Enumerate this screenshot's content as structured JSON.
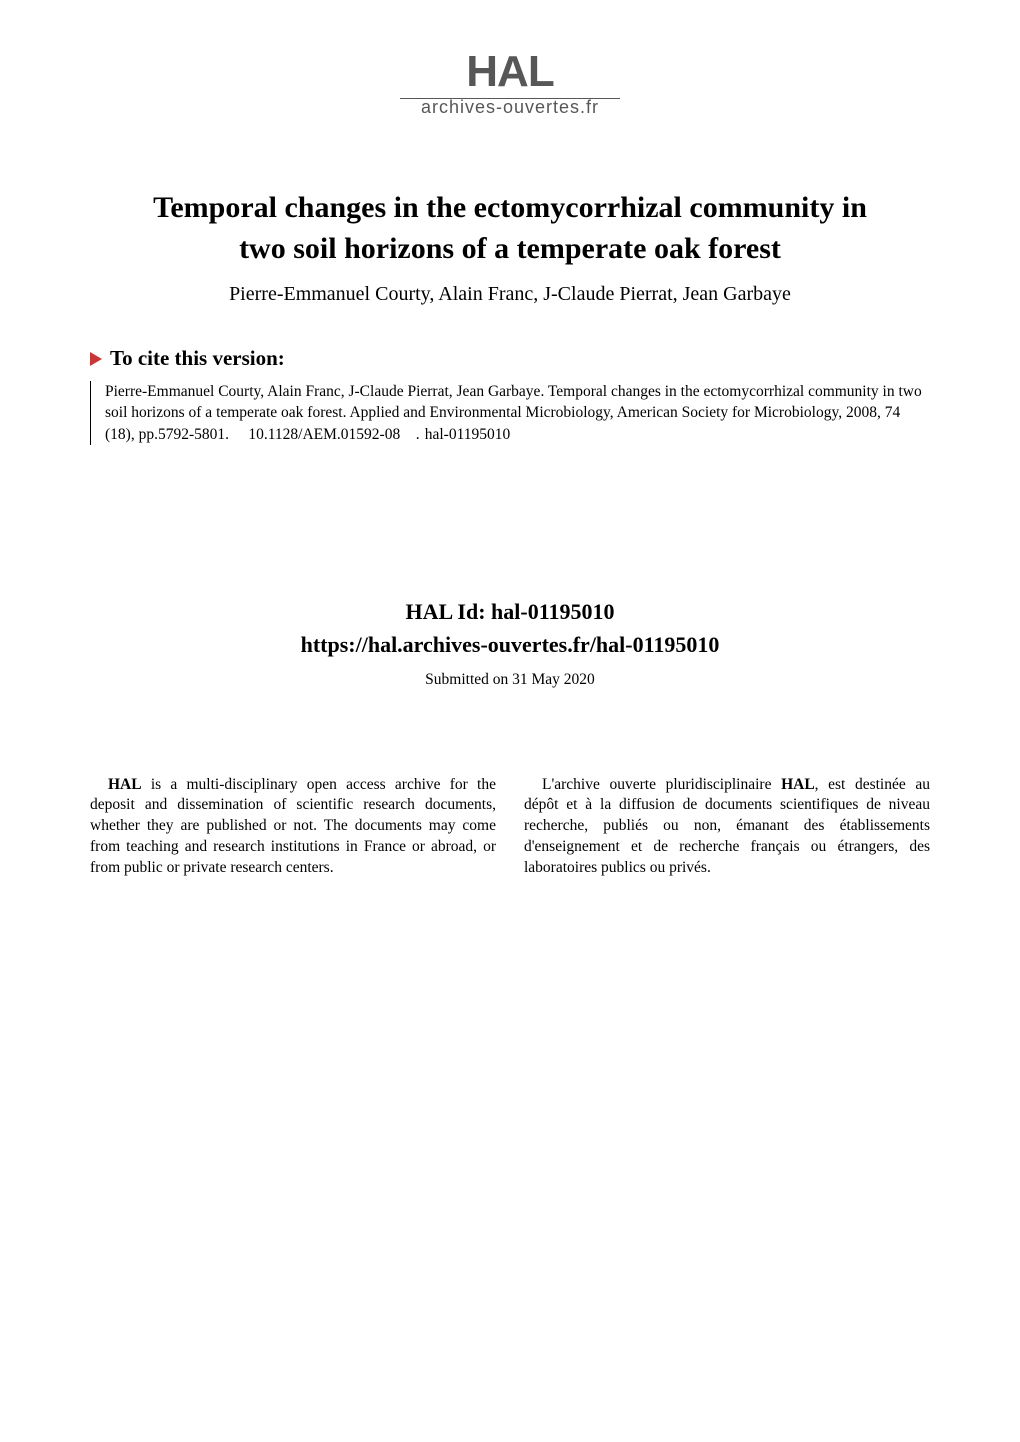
{
  "logo": {
    "main": "HAL",
    "sub": "archives-ouvertes.fr"
  },
  "paper": {
    "title_line1": "Temporal changes in the ectomycorrhizal community in",
    "title_line2": "two soil horizons of a temperate oak forest",
    "authors": "Pierre-Emmanuel Courty, Alain Franc, J-Claude Pierrat, Jean Garbaye"
  },
  "cite": {
    "header": "To cite this version:",
    "text": "Pierre-Emmanuel Courty, Alain Franc, J-Claude Pierrat, Jean Garbaye. Temporal changes in the ectomycorrhizal community in two soil horizons of a temperate oak forest. Applied and Environmental Microbiology, American Society for Microbiology, 2008, 74 (18), pp.5792-5801.  10.1128/AEM.01592-08 .  hal-01195010​"
  },
  "hal": {
    "id_label": "HAL Id: hal-01195010",
    "url": "https://hal.archives-ouvertes.fr/hal-01195010",
    "submitted": "Submitted on 31 May 2020"
  },
  "abstract": {
    "left_p1_lead": "HAL",
    "left_p1_rest": " is a multi-disciplinary open access archive for the deposit and dissemination of scientific research documents, whether they are published or not. The documents may come from teaching and research institutions in France or abroad, or from public or private research centers.",
    "right_p1_lead_pre": "L'archive ouverte pluridisciplinaire ",
    "right_p1_lead_bold": "HAL",
    "right_p1_rest": ", est destinée au dépôt et à la diffusion de documents scientifiques de niveau recherche, publiés ou non, émanant des établissements d'enseignement et de recherche français ou étrangers, des laboratoires publics ou privés."
  },
  "style": {
    "page_bg": "#ffffff",
    "text_color": "#000000",
    "logo_color": "#575757",
    "triangle_color": "#c83737",
    "title_fontsize_pt": 22,
    "authors_fontsize_pt": 15,
    "body_fontsize_pt": 12,
    "hal_id_fontsize_pt": 16
  }
}
